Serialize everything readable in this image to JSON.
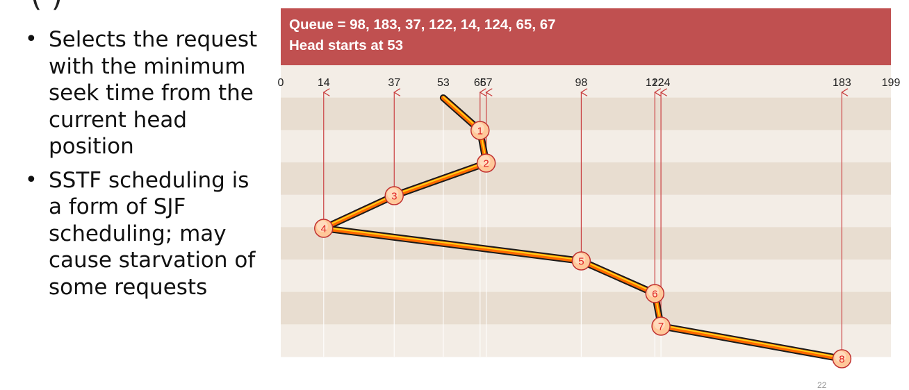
{
  "slide": {
    "title_fragment": "(          )",
    "bullets": [
      "Selects the request with the minimum seek time from the current head position",
      "SSTF scheduling is a form of SJF scheduling; may cause starvation of some requests"
    ],
    "page_number": "22"
  },
  "banner": {
    "queue_line": "Queue = 98, 183, 37, 122, 14, 124, 65, 67",
    "head_line": "Head starts at 53"
  },
  "diagram": {
    "cylinder_min": 0,
    "cylinder_max": 199,
    "axis_ticks": [
      "0",
      "14",
      "37",
      "53",
      "65",
      "67",
      "98",
      "122",
      "124",
      "183",
      "199"
    ],
    "requests": [
      14,
      37,
      65,
      67,
      98,
      122,
      124,
      183
    ],
    "head_start": 53,
    "service_order": [
      {
        "step": "1",
        "cylinder": 65
      },
      {
        "step": "2",
        "cylinder": 67
      },
      {
        "step": "3",
        "cylinder": 37
      },
      {
        "step": "4",
        "cylinder": 14
      },
      {
        "step": "5",
        "cylinder": 98
      },
      {
        "step": "6",
        "cylinder": 122
      },
      {
        "step": "7",
        "cylinder": 124
      },
      {
        "step": "8",
        "cylinder": 183
      }
    ],
    "colors": {
      "band_dark": "#e8ddd0",
      "band_light": "#f3ede6",
      "request_line": "#c83c3c",
      "path_outer": "#1a1a1a",
      "path_inner": "#ff6a00",
      "path_highlight": "#ffd21a",
      "marker_fill": "#ffc89a",
      "marker_stroke": "#c03030",
      "marker_text": "#e02020",
      "axis_text": "#222222"
    }
  }
}
